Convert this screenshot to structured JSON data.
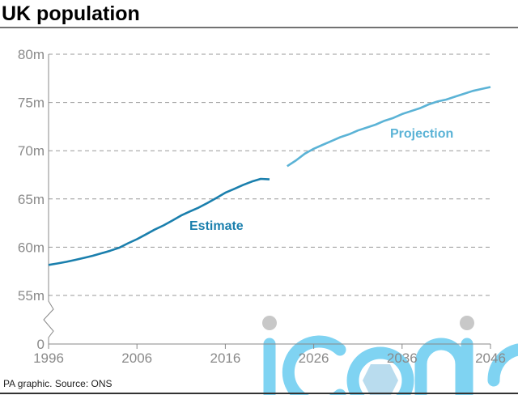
{
  "chart_data": {
    "type": "line",
    "title": "UK population",
    "source": "PA graphic. Source: ONS",
    "xlabel": "",
    "ylabel": "",
    "xlim": [
      1996,
      2046
    ],
    "ylim": [
      55,
      80
    ],
    "y_axis_break": true,
    "y_ticks": [
      "0",
      "55m",
      "60m",
      "65m",
      "70m",
      "75m",
      "80m"
    ],
    "x_ticks": [
      "1996",
      "2006",
      "2016",
      "2026",
      "2036",
      "2046"
    ],
    "grid": "horizontal dashed",
    "series": [
      {
        "name": "Estimate",
        "color": "#1a7fad",
        "x": [
          1996,
          1997,
          1998,
          1999,
          2000,
          2001,
          2002,
          2003,
          2004,
          2005,
          2006,
          2007,
          2008,
          2009,
          2010,
          2011,
          2012,
          2013,
          2014,
          2015,
          2016,
          2017,
          2018,
          2019,
          2020,
          2021
        ],
        "y": [
          58.16,
          58.31,
          58.48,
          58.68,
          58.89,
          59.11,
          59.37,
          59.64,
          59.95,
          60.41,
          60.83,
          61.32,
          61.82,
          62.26,
          62.76,
          63.29,
          63.71,
          64.11,
          64.6,
          65.11,
          65.65,
          66.04,
          66.44,
          66.8,
          67.08,
          67.03
        ]
      },
      {
        "name": "Projection",
        "color": "#5bb3d6",
        "x": [
          2023,
          2024,
          2025,
          2026,
          2027,
          2028,
          2029,
          2030,
          2031,
          2032,
          2033,
          2034,
          2035,
          2036,
          2037,
          2038,
          2039,
          2040,
          2041,
          2042,
          2043,
          2044,
          2045,
          2046
        ],
        "y": [
          68.4,
          69.0,
          69.7,
          70.2,
          70.6,
          71.0,
          71.4,
          71.7,
          72.1,
          72.4,
          72.7,
          73.1,
          73.4,
          73.8,
          74.1,
          74.4,
          74.8,
          75.1,
          75.3,
          75.6,
          75.9,
          76.2,
          76.4,
          76.6
        ]
      }
    ]
  },
  "watermark": "iconic"
}
